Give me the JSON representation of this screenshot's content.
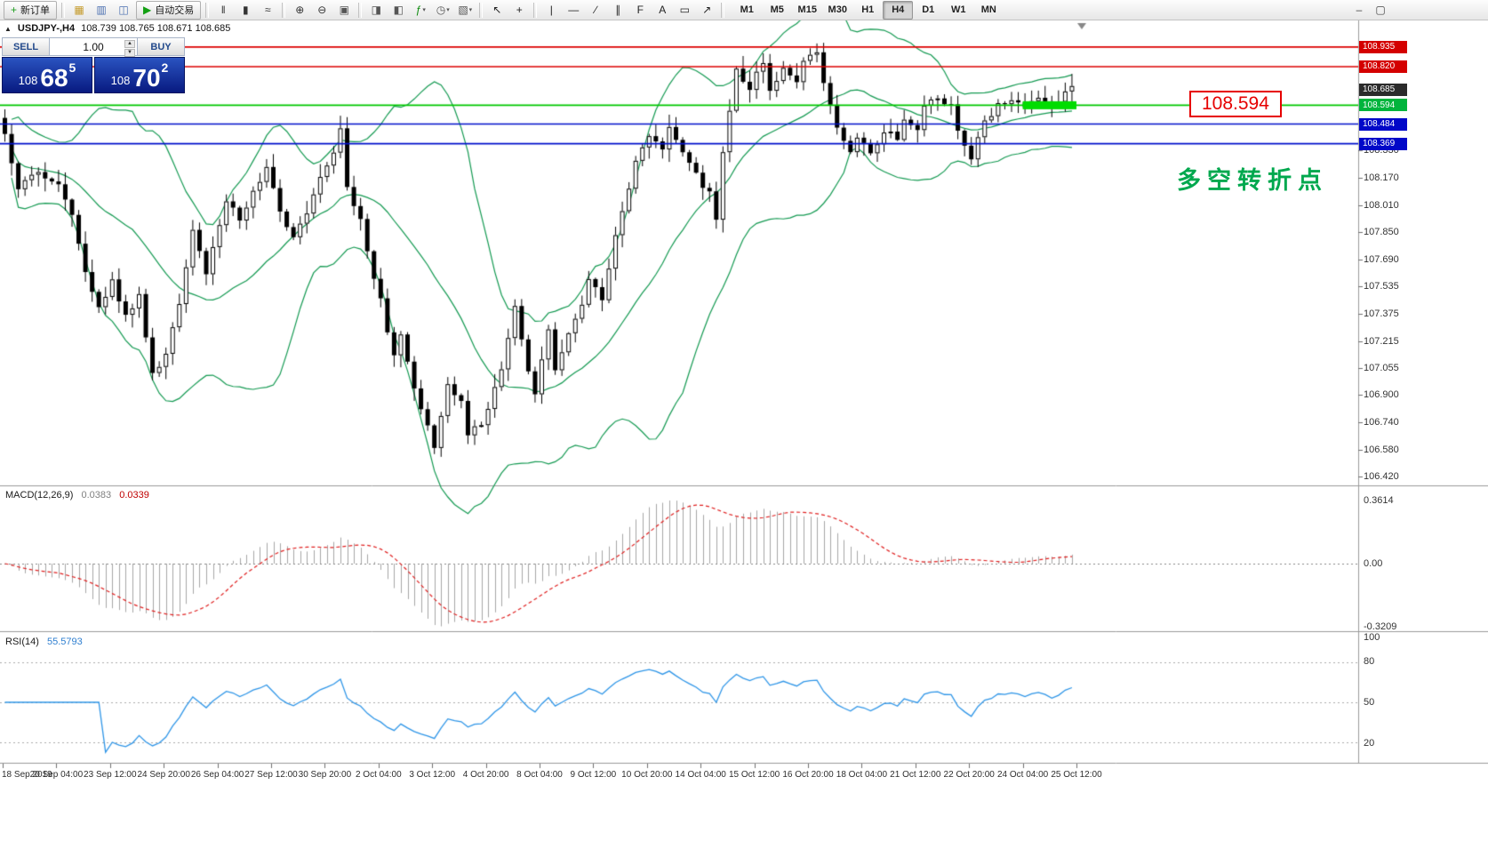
{
  "toolbar": {
    "items": [
      {
        "type": "label",
        "name": "new-order-button",
        "icon": "new-order-icon",
        "glyph": "+",
        "glyph_color": "#1d9e1d",
        "label": "新订单"
      },
      {
        "type": "sep"
      },
      {
        "type": "icon",
        "name": "market-watch-icon",
        "glyph": "▦",
        "glyph_color": "#c49a2a"
      },
      {
        "type": "icon",
        "name": "data-window-icon",
        "glyph": "▥",
        "glyph_color": "#4a6fb0"
      },
      {
        "type": "icon",
        "name": "navigator-icon",
        "glyph": "◫",
        "glyph_color": "#4a6fb0"
      },
      {
        "type": "label",
        "name": "autotrade-button",
        "icon": "autotrade-play-icon",
        "glyph": "▶",
        "glyph_color": "#14a014",
        "label": "自动交易"
      },
      {
        "type": "sep"
      },
      {
        "type": "icon",
        "name": "bar-chart-icon",
        "glyph": "‖",
        "glyph_color": "#333333"
      },
      {
        "type": "icon",
        "name": "candlestick-chart-icon",
        "glyph": "▮",
        "glyph_color": "#333333"
      },
      {
        "type": "icon",
        "name": "line-chart-icon",
        "glyph": "≈",
        "glyph_color": "#333333"
      },
      {
        "type": "sep"
      },
      {
        "type": "icon",
        "name": "zoom-in-icon",
        "glyph": "⊕",
        "glyph_color": "#333333"
      },
      {
        "type": "icon",
        "name": "zoom-out-icon",
        "glyph": "⊖",
        "glyph_color": "#333333"
      },
      {
        "type": "icon",
        "name": "tile-windows-icon",
        "glyph": "▣",
        "glyph_color": "#555555"
      },
      {
        "type": "sep"
      },
      {
        "type": "icon",
        "name": "auto-scroll-icon",
        "glyph": "◨",
        "glyph_color": "#555555"
      },
      {
        "type": "icon",
        "name": "chart-shift-icon",
        "glyph": "◧",
        "glyph_color": "#555555"
      },
      {
        "type": "icon",
        "name": "indicators-icon",
        "glyph": "ƒ",
        "glyph_color": "#0c8a0c",
        "dropdown": true
      },
      {
        "type": "icon",
        "name": "periods-icon",
        "glyph": "◷",
        "glyph_color": "#555555",
        "dropdown": true
      },
      {
        "type": "icon",
        "name": "templates-icon",
        "glyph": "▧",
        "glyph_color": "#555555",
        "dropdown": true
      },
      {
        "type": "sep"
      },
      {
        "type": "icon",
        "name": "cursor-icon",
        "glyph": "↖",
        "glyph_color": "#222222"
      },
      {
        "type": "icon",
        "name": "crosshair-icon",
        "glyph": "+",
        "glyph_color": "#222222"
      },
      {
        "type": "sep"
      },
      {
        "type": "icon",
        "name": "vertical-line-icon",
        "glyph": "|",
        "glyph_color": "#222222"
      },
      {
        "type": "icon",
        "name": "horizontal-line-icon",
        "glyph": "—",
        "glyph_color": "#222222"
      },
      {
        "type": "icon",
        "name": "trendline-icon",
        "glyph": "∕",
        "glyph_color": "#222222"
      },
      {
        "type": "icon",
        "name": "channel-icon",
        "glyph": "∥",
        "glyph_color": "#222222"
      },
      {
        "type": "icon",
        "name": "fibonacci-icon",
        "glyph": "F",
        "glyph_color": "#222222"
      },
      {
        "type": "icon",
        "name": "text-tool-icon",
        "glyph": "A",
        "glyph_color": "#222222"
      },
      {
        "type": "icon",
        "name": "label-tool-icon",
        "glyph": "▭",
        "glyph_color": "#222222"
      },
      {
        "type": "icon",
        "name": "arrow-tool-icon",
        "glyph": "↗",
        "glyph_color": "#222222"
      },
      {
        "type": "sep"
      }
    ],
    "timeframes": [
      "M1",
      "M5",
      "M15",
      "M30",
      "H1",
      "H4",
      "D1",
      "W1",
      "MN"
    ],
    "active_timeframe": "H4",
    "right_items": [
      {
        "name": "minimize-chart-icon",
        "glyph": "–"
      },
      {
        "name": "restore-chart-icon",
        "glyph": "▢"
      }
    ]
  },
  "chart_header": {
    "caret": "▲",
    "symbol": "USDJPY-,H4",
    "ohlc": "108.739 108.765 108.671 108.685"
  },
  "trade_panel": {
    "sell_label": "SELL",
    "buy_label": "BUY",
    "volume": "1.00",
    "spin_up": "▲",
    "spin_down": "▼",
    "sell_price": {
      "prefix": "108",
      "big": "68",
      "sup": "5"
    },
    "buy_price": {
      "prefix": "108",
      "big": "70",
      "sup": "2"
    }
  },
  "annotations": {
    "price_callout": "108.594",
    "turning_point_note": "多空转折点",
    "callout_color": "#e60000",
    "note_color": "#00a84e"
  },
  "price_axis": {
    "tags": [
      {
        "text": "108.935",
        "bg": "#d40000"
      },
      {
        "text": "108.820",
        "bg": "#d40000"
      },
      {
        "text": "108.685",
        "bg": "#2b2b2b"
      },
      {
        "text": "108.594",
        "bg": "#00b43c"
      },
      {
        "text": "108.484",
        "bg": "#0008c8"
      },
      {
        "text": "108.369",
        "bg": "#0008c8"
      }
    ],
    "scale": [
      "108.330",
      "108.170",
      "108.010",
      "107.850",
      "107.690",
      "107.535",
      "107.375",
      "107.215",
      "107.055",
      "106.900",
      "106.740",
      "106.580",
      "106.420"
    ]
  },
  "indicators": {
    "macd": {
      "label": "MACD(12,26,9)",
      "value_main": "0.0383",
      "value_signal": "0.0339",
      "axis": [
        "0.3614",
        "0.00",
        "-0.3209"
      ]
    },
    "rsi": {
      "label": "RSI(14)",
      "value": "55.5793",
      "axis": [
        "100",
        "80",
        "50",
        "20"
      ]
    }
  },
  "time_axis": [
    "18 Sep 2019",
    "20 Sep 04:00",
    "23 Sep 12:00",
    "24 Sep 20:00",
    "26 Sep 04:00",
    "27 Sep 12:00",
    "30 Sep 20:00",
    "2 Oct 04:00",
    "3 Oct 12:00",
    "4 Oct 20:00",
    "8 Oct 04:00",
    "9 Oct 12:00",
    "10 Oct 20:00",
    "14 Oct 04:00",
    "15 Oct 12:00",
    "16 Oct 20:00",
    "18 Oct 04:00",
    "21 Oct 12:00",
    "22 Oct 20:00",
    "24 Oct 04:00",
    "25 Oct 12:00"
  ],
  "chart_data": {
    "type": "candlestick",
    "symbol": "USDJPY-",
    "timeframe": "H4",
    "bar_count": 160,
    "bars_per_time_label": 8,
    "ylim": [
      106.375,
      109.085
    ],
    "last_price": 108.685,
    "bull_color": "#ffffff",
    "bear_color": "#000000",
    "wick_color": "#000000",
    "bollinger": {
      "period": 20,
      "deviation": 2,
      "color": "#149a52"
    },
    "macd_hist_color": "#a6a6a6",
    "macd_signal_color": "#e02020",
    "rsi_color": "#2f96e8",
    "hlines": [
      {
        "price": 108.935,
        "color": "#dd0000"
      },
      {
        "price": 108.82,
        "color": "#dd0000"
      },
      {
        "price": 108.594,
        "color": "#00c800"
      },
      {
        "price": 108.484,
        "color": "#0010cc"
      },
      {
        "price": 108.369,
        "color": "#0010cc"
      }
    ],
    "green_box": {
      "from_bar": 152,
      "to_bar": 160,
      "price": 108.594,
      "color": "#00dc00"
    },
    "price_path": [
      [
        0,
        108.42
      ],
      [
        2,
        108.12
      ],
      [
        5,
        108.2
      ],
      [
        8,
        108.15
      ],
      [
        10,
        107.95
      ],
      [
        12,
        107.62
      ],
      [
        14,
        107.42
      ],
      [
        16,
        107.56
      ],
      [
        18,
        107.36
      ],
      [
        20,
        107.48
      ],
      [
        22,
        107.02
      ],
      [
        24,
        107.12
      ],
      [
        26,
        107.45
      ],
      [
        28,
        107.86
      ],
      [
        30,
        107.62
      ],
      [
        33,
        108.04
      ],
      [
        35,
        107.92
      ],
      [
        37,
        108.08
      ],
      [
        39,
        108.22
      ],
      [
        41,
        107.96
      ],
      [
        43,
        107.82
      ],
      [
        45,
        107.98
      ],
      [
        47,
        108.18
      ],
      [
        49,
        108.32
      ],
      [
        50,
        108.45
      ],
      [
        51,
        108.12
      ],
      [
        53,
        107.92
      ],
      [
        54,
        107.74
      ],
      [
        56,
        107.45
      ],
      [
        58,
        107.12
      ],
      [
        59,
        107.26
      ],
      [
        61,
        106.92
      ],
      [
        63,
        106.72
      ],
      [
        64,
        106.6
      ],
      [
        66,
        106.95
      ],
      [
        68,
        106.88
      ],
      [
        69,
        106.66
      ],
      [
        71,
        106.74
      ],
      [
        72,
        106.82
      ],
      [
        74,
        107.05
      ],
      [
        76,
        107.42
      ],
      [
        78,
        107.02
      ],
      [
        79,
        106.92
      ],
      [
        81,
        107.3
      ],
      [
        82,
        107.06
      ],
      [
        84,
        107.26
      ],
      [
        86,
        107.42
      ],
      [
        87,
        107.56
      ],
      [
        89,
        107.46
      ],
      [
        91,
        107.85
      ],
      [
        93,
        108.1
      ],
      [
        94,
        108.28
      ],
      [
        96,
        108.42
      ],
      [
        98,
        108.34
      ],
      [
        99,
        108.48
      ],
      [
        101,
        108.3
      ],
      [
        103,
        108.18
      ],
      [
        105,
        108.08
      ],
      [
        106,
        107.94
      ],
      [
        107,
        108.3
      ],
      [
        109,
        108.8
      ],
      [
        111,
        108.7
      ],
      [
        113,
        108.85
      ],
      [
        114,
        108.66
      ],
      [
        116,
        108.8
      ],
      [
        118,
        108.72
      ],
      [
        119,
        108.85
      ],
      [
        121,
        108.9
      ],
      [
        122,
        108.72
      ],
      [
        124,
        108.46
      ],
      [
        126,
        108.3
      ],
      [
        127,
        108.42
      ],
      [
        129,
        108.3
      ],
      [
        131,
        108.45
      ],
      [
        133,
        108.4
      ],
      [
        134,
        108.52
      ],
      [
        136,
        108.46
      ],
      [
        137,
        108.58
      ],
      [
        139,
        108.64
      ],
      [
        141,
        108.6
      ],
      [
        142,
        108.44
      ],
      [
        144,
        108.28
      ],
      [
        146,
        108.5
      ],
      [
        148,
        108.6
      ],
      [
        150,
        108.62
      ],
      [
        152,
        108.59
      ],
      [
        154,
        108.63
      ],
      [
        156,
        108.6
      ],
      [
        158,
        108.66
      ],
      [
        159,
        108.72
      ]
    ]
  }
}
